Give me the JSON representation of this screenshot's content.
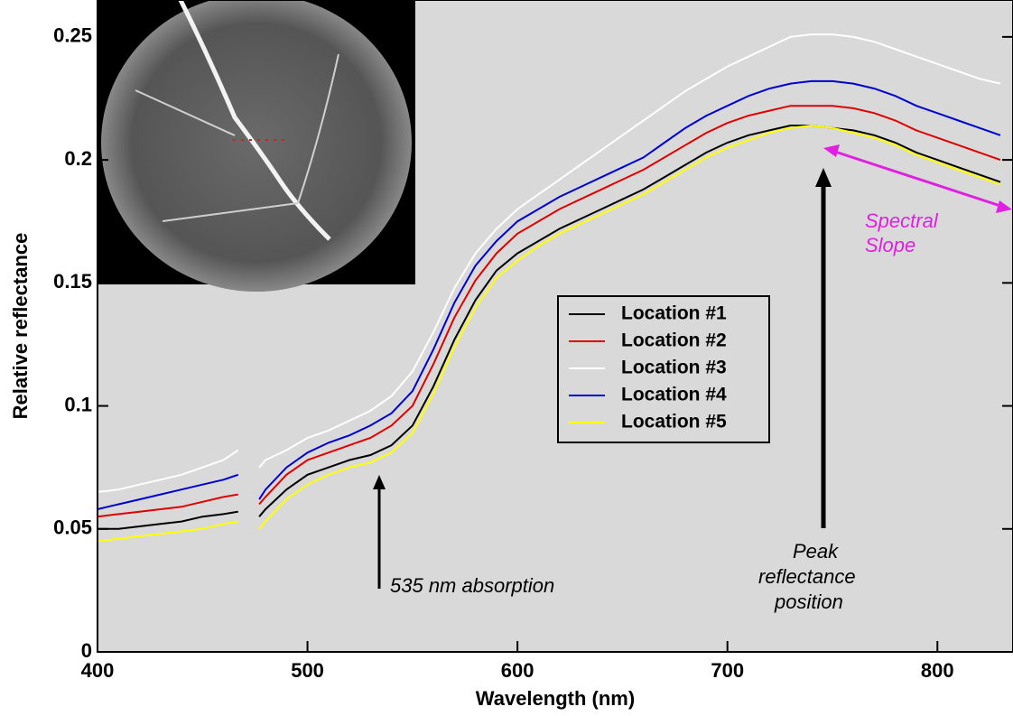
{
  "chart_data": {
    "type": "line",
    "x_label": "Wavelength (nm)",
    "y_label": "Relative reflectance",
    "x": [
      400,
      410,
      420,
      430,
      440,
      450,
      460,
      467,
      472,
      477,
      480,
      490,
      500,
      510,
      520,
      530,
      540,
      550,
      560,
      570,
      580,
      590,
      600,
      610,
      620,
      630,
      640,
      650,
      660,
      670,
      680,
      690,
      700,
      710,
      720,
      730,
      740,
      750,
      760,
      770,
      780,
      790,
      800,
      810,
      820,
      830
    ],
    "series": [
      {
        "name": "Location #1",
        "color": "#000000",
        "values": [
          0.05,
          0.05,
          0.051,
          0.052,
          0.053,
          0.055,
          0.056,
          0.057,
          null,
          0.055,
          0.058,
          0.066,
          0.072,
          0.075,
          0.078,
          0.08,
          0.084,
          0.092,
          0.108,
          0.127,
          0.143,
          0.155,
          0.162,
          0.167,
          0.172,
          0.176,
          0.18,
          0.184,
          0.188,
          0.193,
          0.198,
          0.203,
          0.207,
          0.21,
          0.212,
          0.214,
          0.214,
          0.213,
          0.212,
          0.21,
          0.207,
          0.203,
          0.2,
          0.197,
          0.194,
          0.191
        ]
      },
      {
        "name": "Location #2",
        "color": "#e00000",
        "values": [
          0.055,
          0.056,
          0.057,
          0.058,
          0.059,
          0.061,
          0.063,
          0.064,
          null,
          0.06,
          0.063,
          0.072,
          0.078,
          0.081,
          0.084,
          0.087,
          0.092,
          0.1,
          0.117,
          0.136,
          0.151,
          0.162,
          0.17,
          0.175,
          0.18,
          0.184,
          0.188,
          0.192,
          0.196,
          0.201,
          0.206,
          0.211,
          0.215,
          0.218,
          0.22,
          0.222,
          0.222,
          0.222,
          0.221,
          0.219,
          0.216,
          0.212,
          0.209,
          0.206,
          0.203,
          0.2
        ]
      },
      {
        "name": "Location #3",
        "color": "#ffffff",
        "values": [
          0.065,
          0.066,
          0.068,
          0.07,
          0.072,
          0.075,
          0.078,
          0.082,
          null,
          0.075,
          0.078,
          0.082,
          0.087,
          0.09,
          0.094,
          0.098,
          0.104,
          0.114,
          0.13,
          0.148,
          0.162,
          0.172,
          0.18,
          0.186,
          0.192,
          0.198,
          0.204,
          0.21,
          0.216,
          0.222,
          0.228,
          0.233,
          0.238,
          0.242,
          0.246,
          0.25,
          0.251,
          0.251,
          0.25,
          0.248,
          0.245,
          0.242,
          0.239,
          0.236,
          0.233,
          0.231
        ]
      },
      {
        "name": "Location #4",
        "color": "#0000d0",
        "values": [
          0.058,
          0.06,
          0.062,
          0.064,
          0.066,
          0.068,
          0.07,
          0.072,
          null,
          0.062,
          0.066,
          0.075,
          0.081,
          0.085,
          0.088,
          0.092,
          0.097,
          0.106,
          0.123,
          0.142,
          0.157,
          0.167,
          0.175,
          0.18,
          0.185,
          0.189,
          0.193,
          0.197,
          0.201,
          0.207,
          0.213,
          0.218,
          0.222,
          0.226,
          0.229,
          0.231,
          0.232,
          0.232,
          0.231,
          0.229,
          0.226,
          0.222,
          0.219,
          0.216,
          0.213,
          0.21
        ]
      },
      {
        "name": "Location #5",
        "color": "#ffff00",
        "values": [
          0.045,
          0.046,
          0.047,
          0.048,
          0.049,
          0.05,
          0.052,
          0.053,
          null,
          0.05,
          0.053,
          0.062,
          0.068,
          0.072,
          0.075,
          0.077,
          0.081,
          0.089,
          0.105,
          0.124,
          0.14,
          0.152,
          0.159,
          0.165,
          0.17,
          0.174,
          0.178,
          0.182,
          0.186,
          0.191,
          0.196,
          0.201,
          0.205,
          0.208,
          0.211,
          0.213,
          0.214,
          0.213,
          0.211,
          0.209,
          0.206,
          0.202,
          0.199,
          0.196,
          0.193,
          0.19
        ]
      }
    ],
    "xlim": [
      400,
      836
    ],
    "ylim": [
      0,
      0.265
    ],
    "xticks": [
      400,
      500,
      600,
      700,
      800
    ],
    "yticks": [
      0,
      0.05,
      0.1,
      0.15,
      0.2,
      0.25
    ],
    "annotations": [
      {
        "lines": [
          "535 nm absorption"
        ],
        "color": "#000000"
      },
      {
        "lines": [
          "Peak",
          "reflectance",
          "position"
        ],
        "color": "#000000"
      },
      {
        "lines": [
          "Spectral",
          "Slope"
        ],
        "color": "#e020e0"
      }
    ]
  }
}
